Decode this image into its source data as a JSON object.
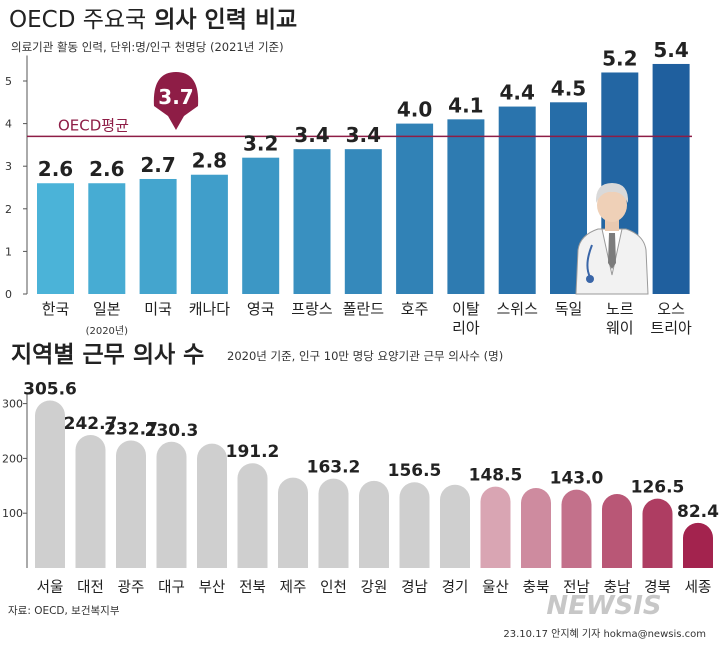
{
  "chart_data": [
    {
      "type": "bar",
      "title": "OECD 주요국",
      "title_bold": "의사 인력 비교",
      "subtitle": "의료기관 활동 인력, 단위:명/인구 천명당 (2021년 기준)",
      "categories": [
        [
          "한국"
        ],
        [
          "일본"
        ],
        [
          "미국"
        ],
        [
          "캐나다"
        ],
        [
          "영국"
        ],
        [
          "프랑스"
        ],
        [
          "폴란드"
        ],
        [
          "호주"
        ],
        [
          "이탈",
          "리아"
        ],
        [
          "스위스"
        ],
        [
          "독일"
        ],
        [
          "노르",
          "웨이"
        ],
        [
          "오스",
          "트리아"
        ]
      ],
      "category_note": {
        "index": 1,
        "text": "(2020년)"
      },
      "values": [
        2.6,
        2.6,
        2.7,
        2.8,
        3.2,
        3.4,
        3.4,
        4.0,
        4.1,
        4.4,
        4.5,
        5.2,
        5.4
      ],
      "value_labels": [
        "2.6",
        "2.6",
        "2.7",
        "2.8",
        "3.2",
        "3.4",
        "3.4",
        "4.0",
        "4.1",
        "4.4",
        "4.5",
        "5.2",
        "5.4"
      ],
      "ylim": [
        0,
        5.6
      ],
      "yticks": [
        0,
        1,
        2,
        3,
        4,
        5
      ],
      "reference_line": {
        "label": "OECD평균",
        "value": 3.7,
        "value_label": "3.7",
        "color": "#8e1d46"
      },
      "colors": {
        "low": "#4bb3d8",
        "high": "#1f5f9e"
      },
      "grid": false
    },
    {
      "type": "bar",
      "title": "지역별 근무 의사 수",
      "subtitle": "2020년 기준, 인구 10만 명당 요양기관 근무 의사수 (명)",
      "categories": [
        "서울",
        "대전",
        "광주",
        "대구",
        "부산",
        "전북",
        "제주",
        "인천",
        "강원",
        "경남",
        "경기",
        "울산",
        "충북",
        "전남",
        "충남",
        "경북",
        "세종"
      ],
      "values": [
        305.6,
        242.7,
        232.7,
        230.3,
        227,
        191.2,
        165,
        163.2,
        159,
        156.5,
        152,
        148.5,
        146,
        143.0,
        135,
        126.5,
        82.4
      ],
      "value_labels": [
        "305.6",
        "242.7",
        "232.7",
        "230.3",
        "",
        "191.2",
        "",
        "163.2",
        "",
        "156.5",
        "",
        "148.5",
        "",
        "143.0",
        "",
        "126.5",
        "82.4"
      ],
      "ylim": [
        0,
        318
      ],
      "yticks": [
        100,
        200,
        300
      ],
      "colors": {
        "grey": "#cfcfcf",
        "pink": "#d9a5b3",
        "deep": "#a3234e"
      },
      "grid": false
    }
  ],
  "footer": {
    "source": "자료: OECD, 보건복지부",
    "credit": "23.10.17 안지혜 기자 hokma@newsis.com",
    "logo": "NEWSIS"
  }
}
